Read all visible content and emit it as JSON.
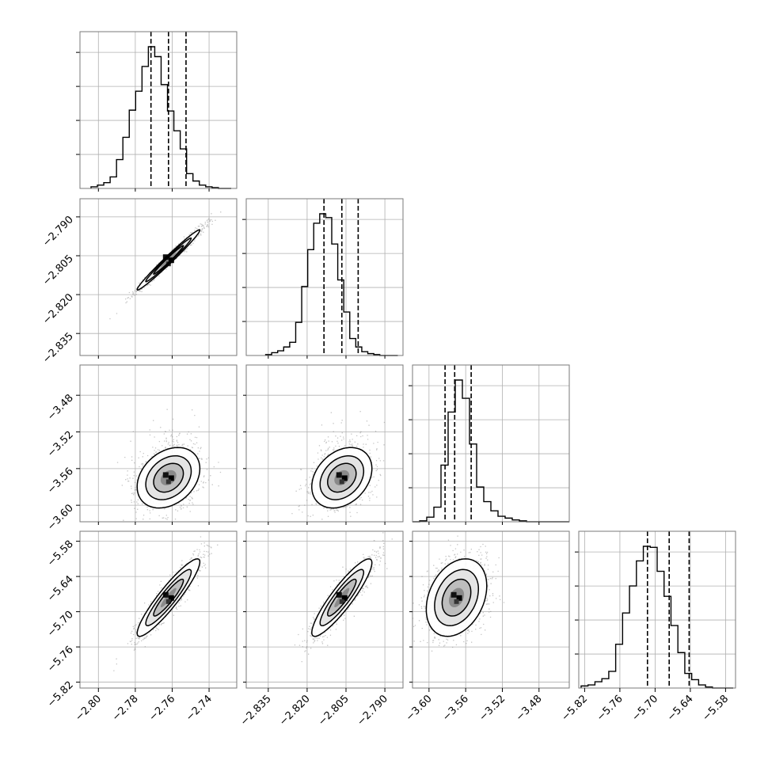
{
  "chart_data": {
    "type": "corner",
    "parameters": [
      {
        "index": 0,
        "range": [
          -2.81,
          -2.725
        ],
        "ticks": [
          -2.8,
          -2.78,
          -2.76,
          -2.74
        ],
        "tick_labels": [
          "−2.80",
          "−2.78",
          "−2.76",
          "−2.74"
        ],
        "quantiles": [
          -2.7715,
          -2.762,
          -2.7525
        ]
      },
      {
        "index": 1,
        "range": [
          -2.8435,
          -2.783
        ],
        "ticks": [
          -2.835,
          -2.82,
          -2.805,
          -2.79
        ],
        "tick_labels": [
          "−2.835",
          "−2.820",
          "−2.805",
          "−2.790"
        ],
        "quantiles": [
          -2.8135,
          -2.8066,
          -2.8003
        ]
      },
      {
        "index": 2,
        "range": [
          -3.618,
          -3.447
        ],
        "ticks": [
          -3.6,
          -3.56,
          -3.52,
          -3.48
        ],
        "tick_labels": [
          "−3.60",
          "−3.56",
          "−3.52",
          "−3.48"
        ],
        "quantiles": [
          -3.5825,
          -3.572,
          -3.554
        ]
      },
      {
        "index": 3,
        "range": [
          -5.83,
          -5.563
        ],
        "ticks": [
          -5.82,
          -5.76,
          -5.7,
          -5.64,
          -5.58
        ],
        "tick_labels": [
          "−5.82",
          "−5.76",
          "−5.70",
          "−5.64",
          "−5.58"
        ],
        "quantiles": [
          -5.713,
          -5.676,
          -5.642
        ]
      }
    ],
    "histograms": [
      {
        "param": 0,
        "edges_range": [
          -2.804,
          -2.728
        ],
        "bins": 22,
        "counts": [
          2,
          4,
          7,
          14,
          35,
          62,
          95,
          118,
          148,
          172,
          160,
          126,
          94,
          70,
          48,
          18,
          9,
          4,
          2,
          1,
          0,
          0
        ]
      },
      {
        "param": 1,
        "edges_range": [
          -2.836,
          -2.785
        ],
        "bins": 22,
        "counts": [
          1,
          3,
          5,
          9,
          14,
          35,
          73,
          112,
          140,
          150,
          146,
          118,
          80,
          46,
          18,
          9,
          4,
          2,
          1,
          0,
          0,
          0
        ]
      },
      {
        "param": 2,
        "edges_range": [
          -3.618,
          -3.447
        ],
        "bins": 22,
        "counts": [
          0,
          1,
          5,
          16,
          62,
          120,
          155,
          135,
          85,
          38,
          22,
          12,
          6,
          4,
          2,
          1,
          0,
          0,
          0,
          0,
          0,
          0
        ]
      },
      {
        "param": 3,
        "edges_range": [
          -5.826,
          -5.567
        ],
        "bins": 22,
        "counts": [
          2,
          3,
          6,
          9,
          16,
          42,
          72,
          98,
          122,
          136,
          135,
          112,
          88,
          60,
          34,
          14,
          8,
          3,
          1,
          0,
          0,
          0
        ]
      }
    ],
    "pairs": [
      {
        "x": 0,
        "y": 1,
        "mean": [
          -2.762,
          -2.8066
        ],
        "sd": [
          0.0085,
          0.0058
        ],
        "corr": 0.985
      },
      {
        "x": 0,
        "y": 2,
        "mean": [
          -2.762,
          -3.57
        ],
        "sd": [
          0.0085,
          0.0165
        ],
        "corr": 0.3
      },
      {
        "x": 1,
        "y": 2,
        "mean": [
          -2.8066,
          -3.57
        ],
        "sd": [
          0.0058,
          0.0165
        ],
        "corr": 0.3
      },
      {
        "x": 0,
        "y": 3,
        "mean": [
          -2.762,
          -5.676
        ],
        "sd": [
          0.0085,
          0.033
        ],
        "corr": 0.92
      },
      {
        "x": 1,
        "y": 3,
        "mean": [
          -2.8066,
          -5.676
        ],
        "sd": [
          0.0058,
          0.033
        ],
        "corr": 0.9
      },
      {
        "x": 2,
        "y": 3,
        "mean": [
          -3.57,
          -5.676
        ],
        "sd": [
          0.0165,
          0.033
        ],
        "corr": 0.3
      }
    ],
    "axis_labels": [],
    "grid": true,
    "colors": {
      "line": "#000000",
      "grid": "#b0b0b0",
      "samples": "#7f7f7f"
    }
  }
}
